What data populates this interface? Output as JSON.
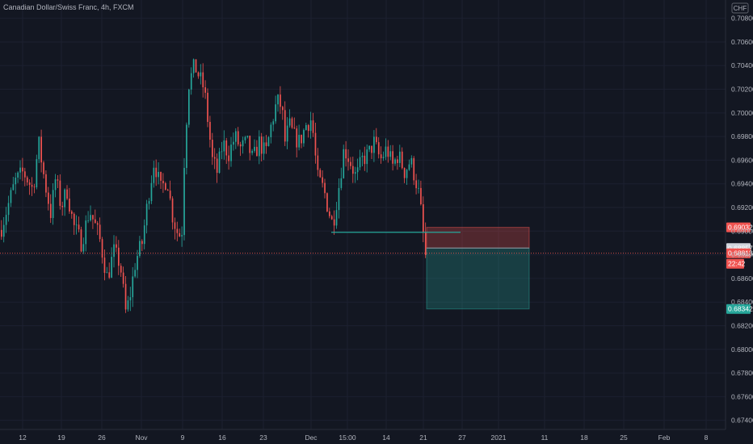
{
  "chart_data": {
    "type": "candlestick",
    "title": "Canadian Dollar/Swiss Franc, 4h, FXCM",
    "currency": "CHF",
    "ylim": [
      0.6735,
      0.709
    ],
    "yticks": [
      "0.70800",
      "0.70600",
      "0.70400",
      "0.70200",
      "0.70000",
      "0.69800",
      "0.69600",
      "0.69400",
      "0.69200",
      "0.69000",
      "0.68800",
      "0.68600",
      "0.68400",
      "0.68200",
      "0.68000",
      "0.67800",
      "0.67600",
      "0.67400"
    ],
    "x_labels": [
      "12",
      "19",
      "26",
      "Nov",
      "9",
      "16",
      "23",
      "Dec",
      "15:00",
      "14",
      "21",
      "27",
      "2021",
      "11",
      "18",
      "25",
      "Feb",
      "8"
    ],
    "price_tags": [
      {
        "label": "0.69032",
        "value": 0.69032,
        "color": "#ef5350"
      },
      {
        "label": "0.68857",
        "value": 0.68857,
        "color": "#d1d4dc"
      },
      {
        "label": "0.68813",
        "value": 0.68813,
        "color": "#ef5350"
      },
      {
        "label": "22:42",
        "value": null,
        "color": "#ef5350"
      },
      {
        "label": "0.68342",
        "value": 0.68342,
        "color": "#26a69a"
      }
    ],
    "position": {
      "kind": "short",
      "stop": 0.69032,
      "entry": 0.68857,
      "target": 0.68342
    },
    "horizontal_level": 0.6899,
    "current_price": 0.68813,
    "colors": {
      "up": "#26a69a",
      "down": "#ef5350",
      "background": "#131722",
      "grid": "#1f2330"
    },
    "close_path": [
      [
        0,
        0.6901
      ],
      [
        18,
        0.6942
      ],
      [
        28,
        0.695
      ],
      [
        40,
        0.6935
      ],
      [
        47,
        0.6975
      ],
      [
        55,
        0.694
      ],
      [
        62,
        0.6915
      ],
      [
        68,
        0.6945
      ],
      [
        75,
        0.692
      ],
      [
        82,
        0.6935
      ],
      [
        90,
        0.6905
      ],
      [
        100,
        0.689
      ],
      [
        110,
        0.6918
      ],
      [
        122,
        0.6895
      ],
      [
        132,
        0.686
      ],
      [
        140,
        0.6883
      ],
      [
        148,
        0.6872
      ],
      [
        155,
        0.683
      ],
      [
        160,
        0.6845
      ],
      [
        167,
        0.6875
      ],
      [
        175,
        0.689
      ],
      [
        183,
        0.693
      ],
      [
        190,
        0.696
      ],
      [
        198,
        0.6935
      ],
      [
        206,
        0.6945
      ],
      [
        212,
        0.6915
      ],
      [
        218,
        0.69
      ],
      [
        224,
        0.6895
      ],
      [
        228,
        0.6975
      ],
      [
        233,
        0.7025
      ],
      [
        240,
        0.704
      ],
      [
        246,
        0.703
      ],
      [
        252,
        0.702
      ],
      [
        257,
        0.699
      ],
      [
        262,
        0.696
      ],
      [
        268,
        0.695
      ],
      [
        275,
        0.6975
      ],
      [
        282,
        0.6965
      ],
      [
        290,
        0.698
      ],
      [
        297,
        0.697
      ],
      [
        305,
        0.6975
      ],
      [
        312,
        0.696
      ],
      [
        320,
        0.6975
      ],
      [
        328,
        0.6965
      ],
      [
        335,
        0.699
      ],
      [
        342,
        0.701
      ],
      [
        348,
        0.7005
      ],
      [
        352,
        0.6975
      ],
      [
        357,
        0.699
      ],
      [
        363,
        0.698
      ],
      [
        370,
        0.6975
      ],
      [
        378,
        0.699
      ],
      [
        385,
        0.6995
      ],
      [
        392,
        0.6945
      ],
      [
        400,
        0.6935
      ],
      [
        405,
        0.692
      ],
      [
        411,
        0.6905
      ],
      [
        418,
        0.6935
      ],
      [
        425,
        0.697
      ],
      [
        432,
        0.696
      ],
      [
        440,
        0.6945
      ],
      [
        447,
        0.696
      ],
      [
        455,
        0.6965
      ],
      [
        462,
        0.6975
      ],
      [
        470,
        0.696
      ],
      [
        478,
        0.697
      ],
      [
        485,
        0.6955
      ],
      [
        492,
        0.6965
      ],
      [
        500,
        0.695
      ],
      [
        507,
        0.696
      ],
      [
        513,
        0.6945
      ],
      [
        518,
        0.693
      ],
      [
        522,
        0.6905
      ],
      [
        525,
        0.688
      ],
      [
        528,
        0.6875
      ]
    ]
  }
}
